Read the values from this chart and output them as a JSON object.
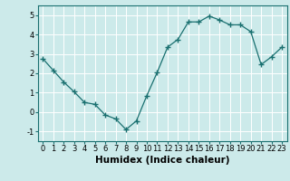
{
  "x": [
    0,
    1,
    2,
    3,
    4,
    5,
    6,
    7,
    8,
    9,
    10,
    11,
    12,
    13,
    14,
    15,
    16,
    17,
    18,
    19,
    20,
    21,
    22,
    23
  ],
  "y": [
    2.75,
    2.15,
    1.55,
    1.05,
    0.5,
    0.4,
    -0.15,
    -0.35,
    -0.9,
    -0.45,
    0.85,
    2.05,
    3.35,
    3.75,
    4.65,
    4.65,
    4.95,
    4.75,
    4.5,
    4.5,
    4.15,
    2.45,
    2.85,
    3.35
  ],
  "line_color": "#1a7070",
  "marker": "+",
  "marker_size": 4,
  "bg_color": "#cceaea",
  "grid_color": "#ffffff",
  "xlabel": "Humidex (Indice chaleur)",
  "xlim": [
    -0.5,
    23.5
  ],
  "ylim": [
    -1.5,
    5.5
  ],
  "yticks": [
    -1,
    0,
    1,
    2,
    3,
    4,
    5
  ],
  "xticks": [
    0,
    1,
    2,
    3,
    4,
    5,
    6,
    7,
    8,
    9,
    10,
    11,
    12,
    13,
    14,
    15,
    16,
    17,
    18,
    19,
    20,
    21,
    22,
    23
  ],
  "xlabel_fontsize": 7.5,
  "tick_fontsize": 6.0
}
